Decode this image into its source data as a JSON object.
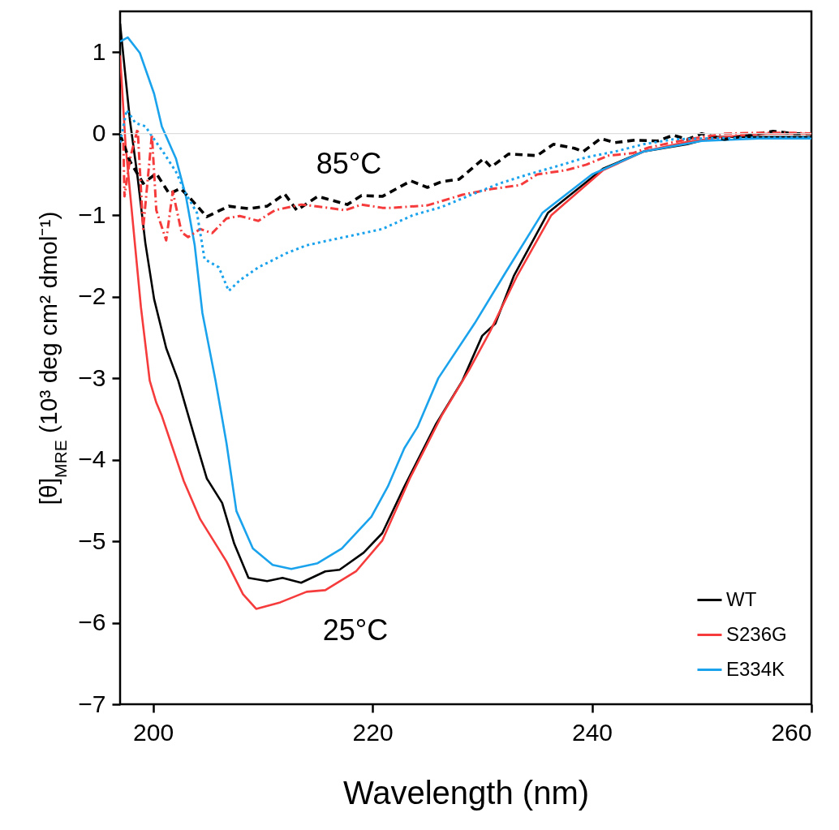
{
  "chart_data": {
    "type": "line",
    "xlabel": "Wavelength (nm)",
    "ylabel": "[θ]$_{MRE}$ (10³ deg cm² dmol⁻¹)",
    "xlim": [
      197,
      260
    ],
    "xticks": [
      200,
      220,
      240,
      260
    ],
    "ylim": [
      -7,
      1.5
    ],
    "yticks": [
      -7,
      -6,
      -5,
      -4,
      -3,
      -2,
      -1,
      0,
      1
    ],
    "legend": "bottom right",
    "grid": false,
    "ref_lines": [
      {
        "axis": "y",
        "value": 0,
        "color": "#dddddd"
      }
    ],
    "annotations": [
      "85°C",
      "25°C"
    ],
    "series": [
      {
        "name": "WT",
        "color": "#000000",
        "line_style": "solid",
        "x": [
          197,
          197.9,
          198.6,
          199.3,
          200.1,
          201.2,
          202.3,
          203.8,
          204.9,
          206.3,
          207.4,
          208.7,
          210.4,
          211.8,
          213.5,
          215.7,
          217,
          219.2,
          220.9,
          222.9,
          225.8,
          228.2,
          230,
          231.2,
          232.9,
          236,
          241,
          244.7,
          248.7,
          251.2,
          255.2,
          260
        ],
        "values": [
          1.35,
          0.16,
          -0.54,
          -1.34,
          -2.03,
          -2.63,
          -3.03,
          -3.73,
          -4.23,
          -4.53,
          -5.03,
          -5.45,
          -5.49,
          -5.45,
          -5.51,
          -5.37,
          -5.35,
          -5.14,
          -4.9,
          -4.33,
          -3.56,
          -3.03,
          -2.48,
          -2.33,
          -1.74,
          -0.97,
          -0.43,
          -0.22,
          -0.13,
          -0.04,
          -0.04,
          -0.04
        ]
      },
      {
        "name": "S236G",
        "color": "#f53b3b",
        "line_style": "solid",
        "x": [
          197,
          197.5,
          198.2,
          198.9,
          199.7,
          200.3,
          200.8,
          202.8,
          204.3,
          206.7,
          208.2,
          209.4,
          211.6,
          214,
          215.7,
          218.5,
          220.9,
          223.4,
          226.3,
          228.8,
          230.7,
          233.2,
          236.3,
          241,
          244.7,
          248.7,
          252,
          256,
          260
        ],
        "values": [
          0.96,
          -0.14,
          -1.14,
          -2.13,
          -3.03,
          -3.3,
          -3.46,
          -4.26,
          -4.73,
          -5.25,
          -5.65,
          -5.83,
          -5.75,
          -5.62,
          -5.6,
          -5.37,
          -4.99,
          -4.23,
          -3.46,
          -2.9,
          -2.43,
          -1.74,
          -1,
          -0.45,
          -0.22,
          -0.1,
          -0.04,
          0,
          0
        ]
      },
      {
        "name": "E334K",
        "color": "#1aa3ec",
        "line_style": "solid",
        "x": [
          197,
          197.7,
          198.8,
          200.1,
          200.8,
          202.1,
          203,
          203.8,
          204.5,
          205.7,
          206.7,
          207.6,
          209.1,
          210.9,
          212.6,
          215,
          217.2,
          219.9,
          221.4,
          222.9,
          224.1,
          226,
          229.3,
          232.1,
          235.5,
          240,
          244.7,
          250,
          255.2,
          260
        ],
        "values": [
          1.13,
          1.18,
          0.99,
          0.49,
          0.09,
          -0.31,
          -0.77,
          -1.37,
          -2.2,
          -3.03,
          -3.8,
          -4.63,
          -5.09,
          -5.29,
          -5.34,
          -5.27,
          -5.09,
          -4.7,
          -4.33,
          -3.86,
          -3.6,
          -3,
          -2.33,
          -1.71,
          -0.97,
          -0.5,
          -0.22,
          -0.09,
          -0.06,
          -0.06
        ]
      },
      {
        "color": "#000000",
        "line_style": "dashed",
        "x": [
          197,
          197.9,
          199.1,
          200.3,
          201.5,
          202.5,
          203.5,
          204.9,
          206.9,
          208.7,
          210.4,
          212,
          213.1,
          215,
          217.7,
          219,
          220.9,
          223.5,
          225,
          226.3,
          227.9,
          230.1,
          230.8,
          232.4,
          235,
          236.5,
          238.4,
          239.2,
          240.8,
          242.1,
          243.9,
          246,
          247.4,
          248.7,
          250,
          252.1,
          255.2,
          256.5,
          258.4,
          260
        ],
        "values": [
          -0.01,
          -0.34,
          -0.61,
          -0.49,
          -0.74,
          -0.67,
          -0.81,
          -1.02,
          -0.89,
          -0.92,
          -0.89,
          -0.74,
          -0.94,
          -0.77,
          -0.87,
          -0.76,
          -0.77,
          -0.58,
          -0.66,
          -0.59,
          -0.56,
          -0.31,
          -0.41,
          -0.25,
          -0.27,
          -0.13,
          -0.18,
          -0.22,
          -0.06,
          -0.11,
          -0.08,
          -0.09,
          -0.02,
          -0.07,
          0,
          -0.07,
          0,
          0.03,
          0,
          0
        ]
      },
      {
        "color": "#f53b3b",
        "line_style": "dashdot",
        "x": [
          197.3,
          197.4,
          197.9,
          198.6,
          199.1,
          199.9,
          200.3,
          201.2,
          201.8,
          202.6,
          203.2,
          204.3,
          205.4,
          206.7,
          207.9,
          209.6,
          211.1,
          213.5,
          216,
          217.5,
          219,
          220.9,
          221.8,
          225,
          228.2,
          230.8,
          233.5,
          235,
          237.6,
          239.5,
          241.5,
          243.7,
          245.2,
          248.7,
          252.1,
          255.2,
          258.4,
          260
        ],
        "values": [
          -0.11,
          -0.77,
          -0.31,
          0.06,
          -1.17,
          -0.01,
          -0.94,
          -1.31,
          -0.71,
          -1.21,
          -1.27,
          -1.17,
          -1.22,
          -1.04,
          -1.01,
          -1.07,
          -0.94,
          -0.87,
          -0.91,
          -0.94,
          -0.87,
          -0.91,
          -0.91,
          -0.88,
          -0.75,
          -0.68,
          -0.63,
          -0.5,
          -0.45,
          -0.38,
          -0.27,
          -0.24,
          -0.17,
          -0.07,
          0,
          0.01,
          0.01,
          0
        ]
      },
      {
        "color": "#1aa3ec",
        "line_style": "dotted",
        "x": [
          197,
          197.6,
          198.4,
          199.3,
          200.1,
          201,
          202.1,
          203,
          204,
          204.7,
          206,
          206.9,
          207.9,
          209.6,
          211.1,
          212.1,
          214,
          216,
          218.5,
          220.9,
          223.7,
          226.3,
          229,
          231.6,
          234.2,
          236.8,
          239.5,
          242.1,
          244.7,
          247.4,
          250,
          255,
          260
        ],
        "values": [
          -0.11,
          0.29,
          0.13,
          0.09,
          -0.07,
          -0.24,
          -0.47,
          -0.74,
          -0.97,
          -1.54,
          -1.64,
          -1.93,
          -1.8,
          -1.64,
          -1.54,
          -1.47,
          -1.37,
          -1.31,
          -1.24,
          -1.17,
          -1,
          -0.9,
          -0.75,
          -0.61,
          -0.5,
          -0.4,
          -0.29,
          -0.22,
          -0.13,
          -0.07,
          -0.06,
          -0.05,
          -0.05
        ]
      }
    ]
  }
}
